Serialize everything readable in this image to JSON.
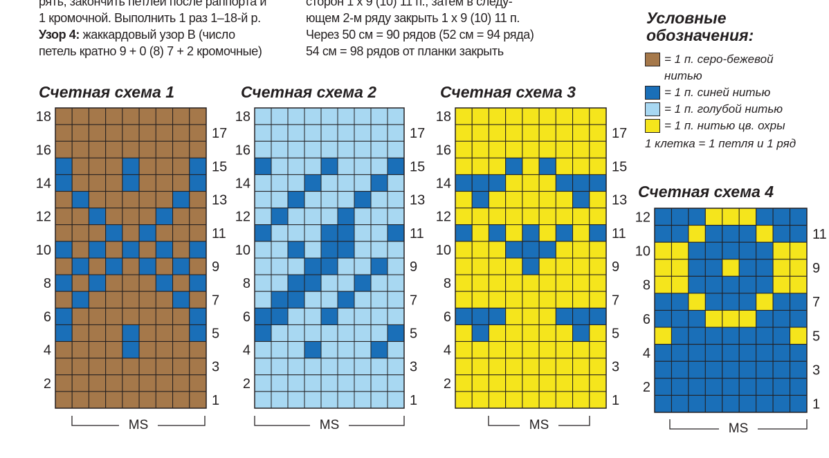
{
  "text": {
    "col1": [
      {
        "prefix": "",
        "text": "рять, закончить петлей после раппорта и"
      },
      {
        "prefix": "",
        "text": "1 кромочной. Выполнить 1 раз 1–18-й р."
      },
      {
        "prefix": "Узор 4:",
        "text": " жаккардовый узор B (число"
      },
      {
        "prefix": "",
        "text": "петель кратно 9 + 0 (8) 7 + 2 кромочные)"
      }
    ],
    "col2": [
      {
        "text": "сторон 1 x 9 (10) 11 п., затем в следу-"
      },
      {
        "text": "ющем 2-м ряду закрыть 1 x 9 (10) 11 п."
      },
      {
        "text": "Через 50 см = 90 рядов (52 см = 94 ряда)"
      },
      {
        "text": "54 см = 98 рядов от планки закрыть"
      }
    ]
  },
  "legend": {
    "title_line1": "Условные",
    "title_line2": "обозначения:",
    "items": [
      {
        "label": "= 1 п. серо-бежевой",
        "continuation": "нитью",
        "color": "#a5784a"
      },
      {
        "label": "= 1 п. синей нитью",
        "continuation": "",
        "color": "#1a6fb8"
      },
      {
        "label": "= 1 п. голубой нитью",
        "continuation": "",
        "color": "#a8d8f2"
      },
      {
        "label": "= 1 п. нитью цв. охры",
        "continuation": "",
        "color": "#f5e51c"
      }
    ],
    "note": "1 клетка = 1 петля и 1 ряд"
  },
  "chart_data": [
    {
      "type": "table",
      "title": "Счетная схема 1",
      "cols": 9,
      "rows": 18,
      "left_labels": [
        "18",
        "16",
        "14",
        "12",
        "10",
        "8",
        "6",
        "4",
        "2"
      ],
      "right_labels": [
        "17",
        "15",
        "13",
        "11",
        "9",
        "7",
        "5",
        "3",
        "1"
      ],
      "repeat_label": "MS",
      "base_color": "#a5784a",
      "grid": [
        "000000000",
        "000000000",
        "000000000",
        "100010001",
        "100010001",
        "010000010",
        "001000100",
        "000101000",
        "101010101",
        "010101010",
        "101000101",
        "010000010",
        "100000001",
        "100010001",
        "000010000",
        "000000000",
        "000000000",
        "000000000"
      ]
    },
    {
      "type": "table",
      "title": "Счетная схема 2",
      "cols": 9,
      "rows": 18,
      "left_labels": [
        "18",
        "16",
        "14",
        "12",
        "10",
        "8",
        "6",
        "4",
        "2"
      ],
      "right_labels": [
        "17",
        "15",
        "13",
        "11",
        "9",
        "7",
        "5",
        "3",
        "1"
      ],
      "repeat_label": "MS",
      "base_color": "#a8d8f2",
      "grid": [
        "000000000",
        "000000000",
        "000000000",
        "100010001",
        "000100010",
        "001000100",
        "010001000",
        "100011001",
        "001011000",
        "000110010",
        "001100100",
        "011001000",
        "110010000",
        "100000001",
        "000100010",
        "000000000",
        "000000000",
        "000000000"
      ]
    },
    {
      "type": "table",
      "title": "Счетная схема 3",
      "cols": 9,
      "rows": 18,
      "left_labels": [
        "18",
        "16",
        "14",
        "12",
        "10",
        "8",
        "6",
        "4",
        "2"
      ],
      "right_labels": [
        "17",
        "15",
        "13",
        "11",
        "9",
        "7",
        "5",
        "3",
        "1"
      ],
      "repeat_label": "MS",
      "base_color": "#f5e51c",
      "grid": [
        "000000000",
        "000000000",
        "000000000",
        "000101000",
        "111000111",
        "010000010",
        "000000000",
        "101010101",
        "000111000",
        "000010000",
        "000000000",
        "000000000",
        "111000111",
        "010000010",
        "000000000",
        "000000000",
        "000000000",
        "000000000"
      ]
    },
    {
      "type": "table",
      "title": "Счетная схема 4",
      "cols": 9,
      "rows": 12,
      "left_labels": [
        "12",
        "10",
        "8",
        "6",
        "4",
        "2"
      ],
      "right_labels": [
        "11",
        "9",
        "7",
        "5",
        "3",
        "1"
      ],
      "repeat_label": "MS",
      "base_color": "#1a6fb8",
      "grid": [
        "000222000",
        "002000200",
        "220000022",
        "220020022",
        "220000022",
        "002000200",
        "000222000",
        "200000002",
        "000000000",
        "000000000",
        "000000000",
        "000000000"
      ]
    }
  ]
}
